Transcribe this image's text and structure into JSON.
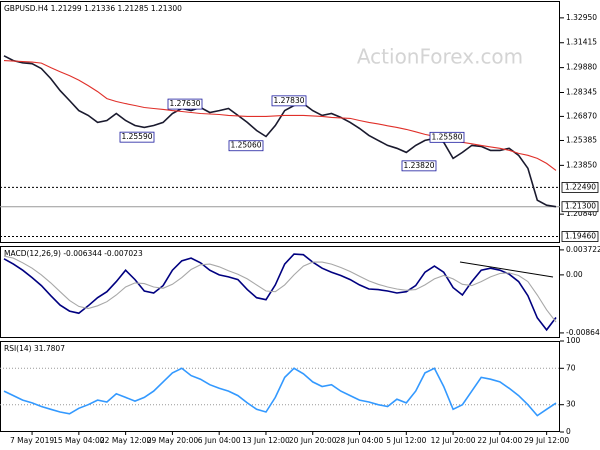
{
  "chart_data": [
    {
      "type": "line",
      "title": "GBPUSD.H4 1.21299 1.21336 1.21285 1.21300",
      "watermark": "ActionForex.com",
      "ylim": [
        1.1906,
        1.3399
      ],
      "yticks": [
        {
          "value": 1.3295,
          "label": "1.32950"
        },
        {
          "value": 1.31415,
          "label": "1.31415"
        },
        {
          "value": 1.2988,
          "label": "1.29880"
        },
        {
          "value": 1.28345,
          "label": "1.28345"
        },
        {
          "value": 1.2687,
          "label": "1.26870"
        },
        {
          "value": 1.25385,
          "label": "1.25385"
        },
        {
          "value": 1.2385,
          "label": "1.23850"
        },
        {
          "value": 1.2084,
          "label": "1.20840"
        }
      ],
      "levels": [
        {
          "value": 1.2249,
          "label": "1.22490",
          "style": "dotted"
        },
        {
          "value": 1.213,
          "label": "1.21300",
          "style": "solid"
        },
        {
          "value": 1.1946,
          "label": "1.19460",
          "style": "dotted"
        }
      ],
      "annotations": [
        {
          "value": 1.2559,
          "label": "1.25590"
        },
        {
          "value": 1.2763,
          "label": "1.27630"
        },
        {
          "value": 1.2506,
          "label": "1.25060"
        },
        {
          "value": 1.2783,
          "label": "1.27830"
        },
        {
          "value": 1.2382,
          "label": "1.23820"
        },
        {
          "value": 1.2558,
          "label": "1.25580"
        }
      ],
      "series": [
        {
          "color": "#1a1a2e",
          "values": [
            1.3061,
            1.3031,
            1.3018,
            1.3012,
            1.2982,
            1.292,
            1.2846,
            1.2785,
            1.2723,
            1.2693,
            1.265,
            1.2662,
            1.2705,
            1.2662,
            1.2631,
            1.2619,
            1.2631,
            1.265,
            1.2705,
            1.2736,
            1.2723,
            1.2742,
            1.2711,
            1.2723,
            1.2736,
            1.2693,
            1.265,
            1.26,
            1.2563,
            1.2631,
            1.2723,
            1.2754,
            1.2766,
            1.2723,
            1.2693,
            1.2705,
            1.2681,
            1.265,
            1.2613,
            1.257,
            1.2539,
            1.2508,
            1.249,
            1.2465,
            1.2508,
            1.2539,
            1.2551,
            1.2527,
            1.2428,
            1.2465,
            1.2508,
            1.2502,
            1.2477,
            1.2477,
            1.249,
            1.2447,
            1.2367,
            1.217,
            1.2139,
            1.213
          ]
        },
        {
          "color": "#e0302a",
          "values": [
            1.3031,
            1.3028,
            1.3025,
            1.3022,
            1.3016,
            1.2988,
            1.2963,
            1.2939,
            1.2911,
            1.2877,
            1.284,
            1.2797,
            1.2779,
            1.2766,
            1.2754,
            1.2742,
            1.2736,
            1.273,
            1.2723,
            1.2717,
            1.2711,
            1.2705,
            1.2702,
            1.2699,
            1.2693,
            1.269,
            1.2687,
            1.2687,
            1.2687,
            1.269,
            1.2693,
            1.2693,
            1.2693,
            1.269,
            1.2687,
            1.2681,
            1.2678,
            1.2675,
            1.2662,
            1.265,
            1.2641,
            1.2629,
            1.2619,
            1.2607,
            1.2592,
            1.2576,
            1.2564,
            1.2545,
            1.2536,
            1.2527,
            1.2518,
            1.2508,
            1.2499,
            1.249,
            1.2478,
            1.2459,
            1.2447,
            1.2428,
            1.2397,
            1.2354
          ]
        }
      ]
    },
    {
      "type": "line",
      "title": "MACD(12,26,9) -0.006344 -0.007023",
      "ylim": [
        -0.0094,
        0.0043
      ],
      "yticks": [
        0.003722,
        {
          "value": 0,
          "label": "0.00"
        },
        -0.008643
      ],
      "series": [
        {
          "color": "#000080",
          "values": [
            0.0024,
            0.0016,
            0.0007,
            -0.0004,
            -0.0016,
            -0.0031,
            -0.0045,
            -0.0054,
            -0.0057,
            -0.0046,
            -0.0034,
            -0.0025,
            -0.001,
            0.0007,
            -0.0007,
            -0.0024,
            -0.0027,
            -0.0016,
            0.0007,
            0.0021,
            0.0025,
            0.0018,
            0.0007,
            0,
            -0.0003,
            -0.0007,
            -0.0022,
            -0.0034,
            -0.0037,
            -0.0015,
            0.0016,
            0.0031,
            0.003,
            0.0019,
            0.001,
            0.0004,
            -0.0001,
            -0.0007,
            -0.0015,
            -0.0021,
            -0.0022,
            -0.0024,
            -0.0027,
            -0.0025,
            -0.0016,
            0.0004,
            0.0013,
            0.0004,
            -0.0019,
            -0.003,
            -0.001,
            0.0007,
            0.001,
            0.0007,
            0.0001,
            -0.001,
            -0.0031,
            -0.0064,
            -0.0082,
            -0.006344
          ]
        },
        {
          "color": "#a8a8a8",
          "values": [
            0.0028,
            0.0025,
            0.0018,
            0.001,
            0,
            -0.0012,
            -0.0025,
            -0.0038,
            -0.0047,
            -0.005,
            -0.0046,
            -0.004,
            -0.003,
            -0.0018,
            -0.0012,
            -0.0013,
            -0.0018,
            -0.002,
            -0.0014,
            -0.0004,
            0.0008,
            0.0015,
            0.0016,
            0.0012,
            0.0006,
            0.0001,
            -0.0006,
            -0.0015,
            -0.0024,
            -0.0025,
            -0.0015,
            0,
            0.0013,
            0.0019,
            0.0019,
            0.0016,
            0.0011,
            0.0005,
            -0.0002,
            -0.0009,
            -0.0014,
            -0.0018,
            -0.0021,
            -0.0023,
            -0.0022,
            -0.0015,
            -0.0006,
            -0.0001,
            -0.0006,
            -0.0014,
            -0.0016,
            -0.001,
            -0.0003,
            0.0002,
            0.0003,
            -0.0001,
            -0.001,
            -0.003,
            -0.0052,
            -0.007023
          ]
        }
      ]
    },
    {
      "type": "line",
      "title": "RSI(14) 31.7807",
      "ylim": [
        0,
        100
      ],
      "yticks": [
        100,
        70,
        30,
        0
      ],
      "grid": "dotted",
      "x": [
        null,
        null,
        null,
        "7 May 2019",
        null,
        null,
        null,
        null,
        "15 May 04:00",
        null,
        null,
        null,
        null,
        "22 May 12:00",
        null,
        null,
        null,
        null,
        "29 May 20:00",
        null,
        null,
        null,
        null,
        "6 Jun 04:00",
        null,
        null,
        null,
        null,
        "13 Jun 12:00",
        null,
        null,
        null,
        null,
        "20 Jun 20:00",
        null,
        null,
        null,
        null,
        "28 Jun 04:00",
        null,
        null,
        null,
        null,
        "5 Jul 12:00",
        null,
        null,
        null,
        null,
        "12 Jul 20:00",
        null,
        null,
        null,
        null,
        "22 Jul 04:00",
        null,
        null,
        null,
        null,
        "29 Jul 12:00",
        null
      ],
      "series": [
        {
          "color": "#3399ff",
          "values": [
            45,
            40,
            35,
            32,
            28,
            25,
            22,
            20,
            26,
            30,
            35,
            33,
            42,
            38,
            34,
            38,
            45,
            55,
            65,
            70,
            62,
            58,
            52,
            48,
            45,
            40,
            32,
            25,
            22,
            38,
            60,
            70,
            64,
            55,
            50,
            52,
            45,
            40,
            35,
            33,
            30,
            28,
            36,
            32,
            45,
            65,
            70,
            50,
            25,
            30,
            45,
            60,
            58,
            55,
            48,
            40,
            30,
            18,
            25,
            31.7807
          ]
        }
      ]
    }
  ]
}
